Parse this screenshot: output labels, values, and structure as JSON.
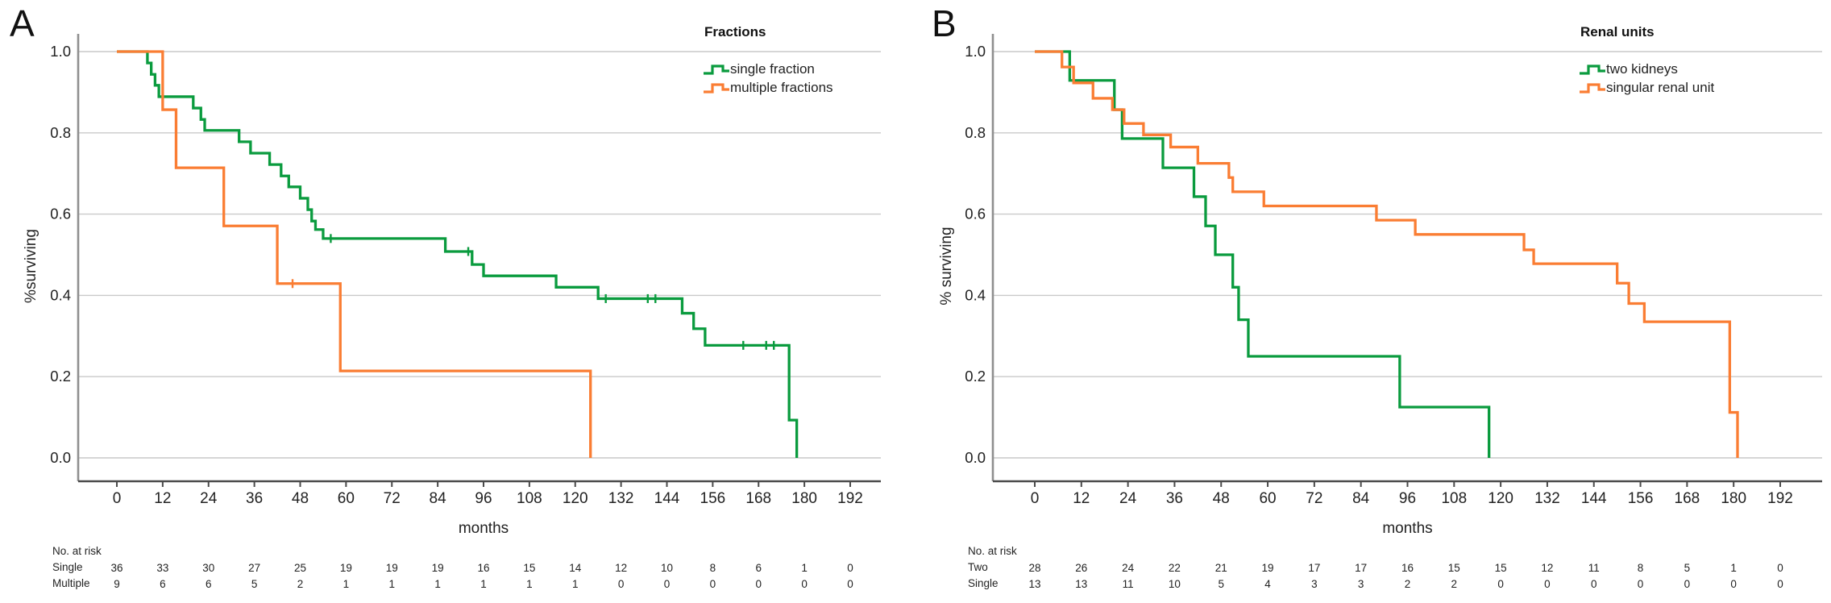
{
  "figure": {
    "background": "#ffffff",
    "grid_color": "#c9c9c9",
    "spine_color": "#8f8f8f",
    "axis_color": "#4a4a4a",
    "text_color": "#222222"
  },
  "chart_data": [
    {
      "type": "line",
      "variant": "kaplan-meier-step",
      "panel_label": "A",
      "xlabel": "months",
      "ylabel": "%surviving",
      "xlim": [
        0,
        192
      ],
      "ylim": [
        0.0,
        1.0
      ],
      "xticks": [
        0,
        12,
        24,
        36,
        48,
        60,
        72,
        84,
        96,
        108,
        120,
        132,
        144,
        156,
        168,
        180,
        192
      ],
      "yticks": [
        0.0,
        0.2,
        0.4,
        0.6,
        0.8,
        1.0
      ],
      "grid": true,
      "legend": {
        "title": "Fractions",
        "position": "top-right",
        "entries": [
          {
            "label": "single fraction",
            "color": "#0a9b3e"
          },
          {
            "label": "multiple fractions",
            "color": "#fa7d33"
          }
        ]
      },
      "series": [
        {
          "name": "single fraction",
          "color": "#0a9b3e",
          "steps": [
            [
              0,
              1.0
            ],
            [
              8,
              0.972
            ],
            [
              9,
              0.944
            ],
            [
              10,
              0.917
            ],
            [
              11,
              0.889
            ],
            [
              20,
              0.861
            ],
            [
              22,
              0.833
            ],
            [
              23,
              0.806
            ],
            [
              32,
              0.778
            ],
            [
              35,
              0.75
            ],
            [
              40,
              0.722
            ],
            [
              43,
              0.694
            ],
            [
              45,
              0.667
            ],
            [
              48,
              0.639
            ],
            [
              50,
              0.611
            ],
            [
              51,
              0.583
            ],
            [
              52,
              0.562
            ],
            [
              54,
              0.54
            ],
            [
              86,
              0.508
            ],
            [
              93,
              0.476
            ],
            [
              96,
              0.448
            ],
            [
              115,
              0.42
            ],
            [
              126,
              0.392
            ],
            [
              148,
              0.356
            ],
            [
              151,
              0.318
            ],
            [
              154,
              0.277
            ],
            [
              176,
              0.093
            ],
            [
              178,
              0.0
            ]
          ],
          "censors": [
            [
              56,
              0.54
            ],
            [
              92,
              0.508
            ],
            [
              128,
              0.392
            ],
            [
              139,
              0.392
            ],
            [
              141,
              0.392
            ],
            [
              164,
              0.277
            ],
            [
              170,
              0.277
            ],
            [
              172,
              0.277
            ]
          ]
        },
        {
          "name": "multiple fractions",
          "color": "#fa7d33",
          "steps": [
            [
              0,
              1.0
            ],
            [
              12,
              0.857
            ],
            [
              15.5,
              0.714
            ],
            [
              28,
              0.571
            ],
            [
              42,
              0.429
            ],
            [
              58.5,
              0.214
            ],
            [
              124,
              0.0
            ]
          ],
          "censors": [
            [
              46,
              0.429
            ]
          ]
        }
      ],
      "risk_table": {
        "heading": "No. at risk",
        "rows": [
          {
            "label": "Single",
            "values": [
              36,
              33,
              30,
              27,
              25,
              19,
              19,
              19,
              16,
              15,
              14,
              12,
              10,
              8,
              6,
              1,
              0
            ]
          },
          {
            "label": "Multiple",
            "values": [
              9,
              6,
              6,
              5,
              2,
              1,
              1,
              1,
              1,
              1,
              1,
              0,
              0,
              0,
              0,
              0,
              0
            ]
          }
        ]
      }
    },
    {
      "type": "line",
      "variant": "kaplan-meier-step",
      "panel_label": "B",
      "xlabel": "months",
      "ylabel": "% surviving",
      "xlim": [
        0,
        192
      ],
      "ylim": [
        0.0,
        1.0
      ],
      "xticks": [
        0,
        12,
        24,
        36,
        48,
        60,
        72,
        84,
        96,
        108,
        120,
        132,
        144,
        156,
        168,
        180,
        192
      ],
      "yticks": [
        0.0,
        0.2,
        0.4,
        0.6,
        0.8,
        1.0
      ],
      "grid": true,
      "legend": {
        "title": "Renal units",
        "position": "top-right",
        "entries": [
          {
            "label": "two kidneys",
            "color": "#0a9b3e"
          },
          {
            "label": "singular renal unit",
            "color": "#fa7d33"
          }
        ]
      },
      "series": [
        {
          "name": "two kidneys",
          "color": "#0a9b3e",
          "steps": [
            [
              0,
              1.0
            ],
            [
              9,
              0.929
            ],
            [
              20.5,
              0.857
            ],
            [
              22.5,
              0.786
            ],
            [
              33,
              0.714
            ],
            [
              41,
              0.643
            ],
            [
              44,
              0.571
            ],
            [
              46.5,
              0.5
            ],
            [
              51,
              0.42
            ],
            [
              52.5,
              0.34
            ],
            [
              55,
              0.25
            ],
            [
              94,
              0.125
            ],
            [
              117,
              0.0
            ]
          ],
          "censors": []
        },
        {
          "name": "singular renal unit",
          "color": "#fa7d33",
          "steps": [
            [
              0,
              1.0
            ],
            [
              7,
              0.962
            ],
            [
              10,
              0.923
            ],
            [
              15,
              0.885
            ],
            [
              20,
              0.857
            ],
            [
              23,
              0.823
            ],
            [
              28,
              0.795
            ],
            [
              35,
              0.765
            ],
            [
              42,
              0.725
            ],
            [
              50,
              0.69
            ],
            [
              51,
              0.655
            ],
            [
              59,
              0.62
            ],
            [
              88,
              0.585
            ],
            [
              98,
              0.55
            ],
            [
              126,
              0.512
            ],
            [
              128.5,
              0.478
            ],
            [
              150,
              0.43
            ],
            [
              153,
              0.38
            ],
            [
              157,
              0.335
            ],
            [
              179,
              0.112
            ],
            [
              181,
              0.0
            ]
          ],
          "censors": []
        }
      ],
      "risk_table": {
        "heading": "No. at risk",
        "rows": [
          {
            "label": "Two",
            "values": [
              28,
              26,
              24,
              22,
              21,
              19,
              17,
              17,
              16,
              15,
              15,
              12,
              11,
              8,
              5,
              1,
              0
            ]
          },
          {
            "label": "Single",
            "values": [
              13,
              13,
              11,
              10,
              5,
              4,
              3,
              3,
              2,
              2,
              0,
              0,
              0,
              0,
              0,
              0,
              0
            ]
          }
        ]
      }
    }
  ]
}
